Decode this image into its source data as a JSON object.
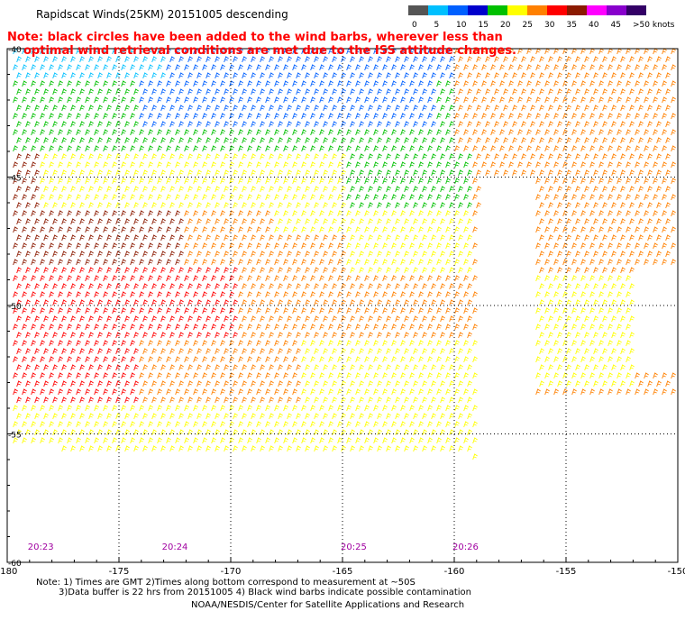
{
  "title": "Rapidscat Winds(25KM) 20151005 descending",
  "note": [
    "Note: black circles have been added to the wind barbs, wherever less than",
    "optimal wind retrieval conditions are met due to the ISS attitude changes."
  ],
  "colorbar": {
    "labels": [
      "0",
      "5",
      "10",
      "15",
      "20",
      "25",
      "30",
      "35",
      "40",
      "45",
      ">50 knots"
    ],
    "colors": [
      "#555555",
      "#00c0ff",
      "#0060ff",
      "#0000cc",
      "#00c000",
      "#ffff00",
      "#ff8000",
      "#ff0000",
      "#8b1a00",
      "#ff00ff",
      "#8800cc",
      "#330066"
    ]
  },
  "axes": {
    "lon_labels": [
      "-180",
      "-175",
      "-170",
      "-165",
      "-160",
      "-155",
      "-150"
    ],
    "lat_labels": [
      "-40",
      "-45",
      "-50",
      "-55",
      "-60"
    ],
    "lon_range": [
      -180,
      -150
    ],
    "lat_range": [
      -40,
      -60
    ]
  },
  "times": [
    "20:23",
    "20:24",
    "20:25",
    "20:26"
  ],
  "time_lons": [
    -179,
    -173,
    -165,
    -160
  ],
  "footer": {
    "line1": "Note: 1) Times are GMT 2)Times along bottom correspond to measurement at ~50S",
    "line2": "3)Data buffer is 22 hrs from 20151005 4) Black wind barbs indicate possible contamination",
    "line3": "NOAA/NESDIS/Center for Satellite Applications and Research"
  }
}
